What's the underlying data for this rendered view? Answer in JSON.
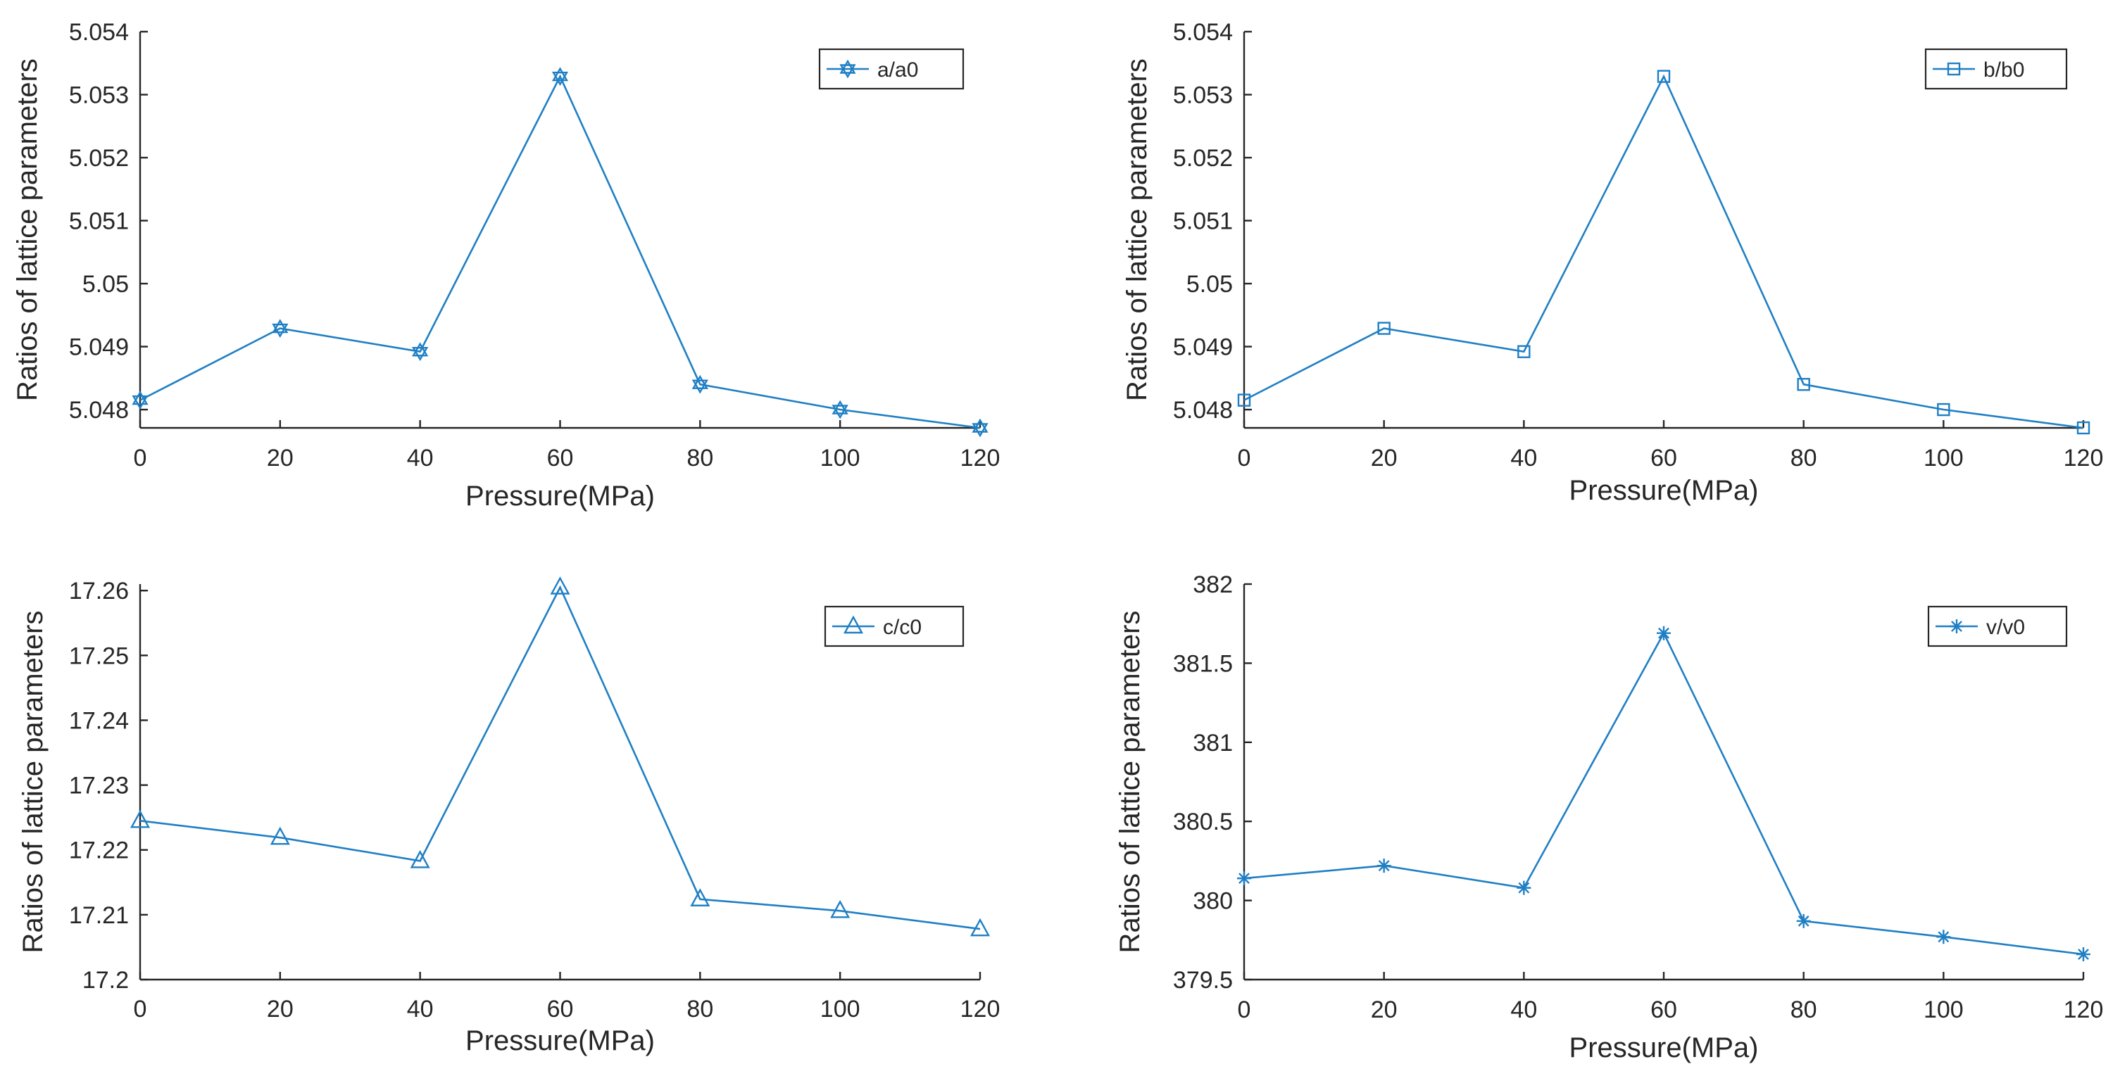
{
  "colors": {
    "series": "#1f7fc4",
    "axis": "#262626",
    "background": "#ffffff"
  },
  "chart_data": [
    {
      "type": "line",
      "marker": "hexagram",
      "legend": "a/a0",
      "legend_position": "top-right",
      "xlabel": "Pressure(MPa)",
      "ylabel": "Ratios of lattice parameters",
      "x": [
        0,
        20,
        40,
        60,
        80,
        100,
        120
      ],
      "values": [
        5.04815,
        5.04929,
        5.04892,
        5.05329,
        5.0484,
        5.048,
        5.04771
      ],
      "xlim": [
        0,
        120
      ],
      "ylim": [
        5.04771,
        5.054
      ],
      "xticks": [
        "0",
        "20",
        "40",
        "60",
        "80",
        "100",
        "120"
      ],
      "yticks": [
        "5.048",
        "5.049",
        "5.05",
        "5.051",
        "5.052",
        "5.053",
        "5.054"
      ]
    },
    {
      "type": "line",
      "marker": "square",
      "legend": "b/b0",
      "legend_position": "top-right",
      "xlabel": "Pressure(MPa)",
      "ylabel": "Ratios of lattice parameters",
      "x": [
        0,
        20,
        40,
        60,
        80,
        100,
        120
      ],
      "values": [
        5.04815,
        5.04929,
        5.04892,
        5.05329,
        5.0484,
        5.048,
        5.04771
      ],
      "xlim": [
        0,
        120
      ],
      "ylim": [
        5.04771,
        5.054
      ],
      "xticks": [
        "0",
        "20",
        "40",
        "60",
        "80",
        "100",
        "120"
      ],
      "yticks": [
        "5.048",
        "5.049",
        "5.05",
        "5.051",
        "5.052",
        "5.053",
        "5.054"
      ]
    },
    {
      "type": "line",
      "marker": "triangle",
      "legend": "c/c0",
      "legend_position": "top-right",
      "xlabel": "Pressure(MPa)",
      "ylabel": "Ratios of lattice parameters",
      "x": [
        0,
        20,
        40,
        60,
        80,
        100,
        120
      ],
      "values": [
        17.2245,
        17.2219,
        17.2183,
        17.2605,
        17.2124,
        17.2106,
        17.2078
      ],
      "xlim": [
        0,
        120
      ],
      "ylim": [
        17.2,
        17.261
      ],
      "xticks": [
        "0",
        "20",
        "40",
        "60",
        "80",
        "100",
        "120"
      ],
      "yticks": [
        "17.2",
        "17.21",
        "17.22",
        "17.23",
        "17.24",
        "17.25",
        "17.26"
      ]
    },
    {
      "type": "line",
      "marker": "asterisk",
      "legend": "v/v0",
      "legend_position": "top-right",
      "xlabel": "Pressure(MPa)",
      "ylabel": "Ratios of lattice parameters",
      "x": [
        0,
        20,
        40,
        60,
        80,
        100,
        120
      ],
      "values": [
        380.14,
        380.22,
        380.08,
        381.69,
        379.87,
        379.77,
        379.66
      ],
      "xlim": [
        0,
        120
      ],
      "ylim": [
        379.5,
        382
      ],
      "xticks": [
        "0",
        "20",
        "40",
        "60",
        "80",
        "100",
        "120"
      ],
      "yticks": [
        "379.5",
        "380",
        "380.5",
        "381",
        "381.5",
        "382"
      ]
    }
  ]
}
